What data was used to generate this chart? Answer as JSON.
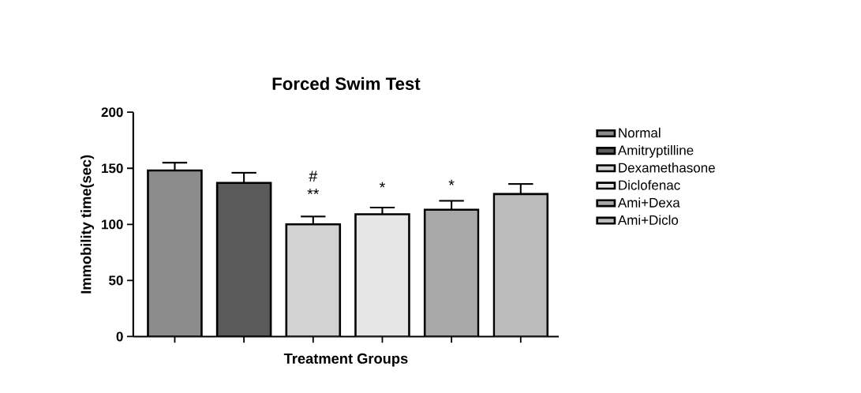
{
  "chart_data": {
    "type": "bar",
    "title": "Forced Swim Test",
    "xlabel": "Treatment Groups",
    "ylabel": "Immobility time(sec)",
    "categories": [
      null,
      null,
      null,
      null,
      null,
      null
    ],
    "series": [
      {
        "name": "Normal",
        "color": "#8c8c8c",
        "values": [
          148,
          null,
          null,
          null,
          null,
          null
        ],
        "errors": [
          7,
          null,
          null,
          null,
          null,
          null
        ]
      },
      {
        "name": "Amitryptilline",
        "color": "#5a5a5a",
        "values": [
          null,
          137,
          null,
          null,
          null,
          null
        ],
        "errors": [
          null,
          9,
          null,
          null,
          null,
          null
        ]
      },
      {
        "name": "Dexamethasone",
        "color": "#d2d2d2",
        "values": [
          null,
          null,
          100,
          null,
          null,
          null
        ],
        "errors": [
          null,
          null,
          7,
          null,
          null,
          null
        ]
      },
      {
        "name": "Diclofenac",
        "color": "#e6e6e6",
        "values": [
          null,
          null,
          null,
          109,
          null,
          null
        ],
        "errors": [
          null,
          null,
          null,
          6,
          null,
          null
        ]
      },
      {
        "name": "Ami+Dexa",
        "color": "#a8a8a8",
        "values": [
          null,
          null,
          null,
          null,
          113,
          null
        ],
        "errors": [
          null,
          null,
          null,
          null,
          8,
          null
        ]
      },
      {
        "name": "Ami+Diclo",
        "color": "#bcbcbc",
        "values": [
          null,
          null,
          null,
          null,
          null,
          127
        ],
        "errors": [
          null,
          null,
          null,
          null,
          null,
          9
        ]
      }
    ],
    "ylim": [
      0,
      200
    ],
    "yticks": [
      0,
      50,
      100,
      150,
      200
    ],
    "tick_labels": "y",
    "legend": "right",
    "annotations": [
      "#",
      "**",
      "*",
      "*"
    ]
  }
}
